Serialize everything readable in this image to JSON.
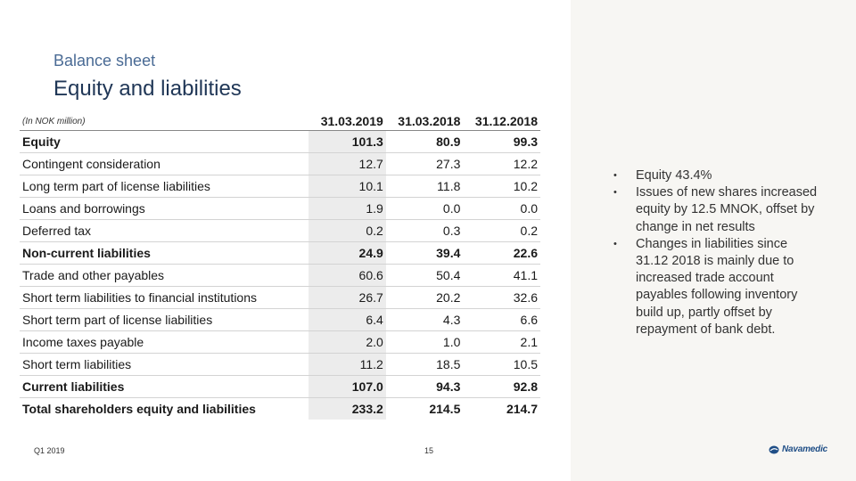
{
  "header": {
    "subtitle": "Balance sheet",
    "title": "Equity and liabilities"
  },
  "table": {
    "unit_label": "(In NOK million)",
    "columns": [
      "31.03.2019",
      "31.03.2018",
      "31.12.2018"
    ],
    "rows": [
      {
        "label": "Equity",
        "values": [
          "101.3",
          "80.9",
          "99.3"
        ]
      },
      {
        "label": "Contingent consideration",
        "values": [
          "12.7",
          "27.3",
          "12.2"
        ]
      },
      {
        "label": "Long term part of license liabilities",
        "values": [
          "10.1",
          "11.8",
          "10.2"
        ]
      },
      {
        "label": "Loans and borrowings",
        "values": [
          "1.9",
          "0.0",
          "0.0"
        ]
      },
      {
        "label": "Deferred tax",
        "values": [
          "0.2",
          "0.3",
          "0.2"
        ]
      },
      {
        "label": "Non-current liabilities",
        "values": [
          "24.9",
          "39.4",
          "22.6"
        ]
      },
      {
        "label": "Trade and other payables",
        "values": [
          "60.6",
          "50.4",
          "41.1"
        ]
      },
      {
        "label": "Short term liabilities to financial institutions",
        "values": [
          "26.7",
          "20.2",
          "32.6"
        ]
      },
      {
        "label": "Short term part of license liabilities",
        "values": [
          "6.4",
          "4.3",
          "6.6"
        ]
      },
      {
        "label": "Income taxes payable",
        "values": [
          "2.0",
          "1.0",
          "2.1"
        ]
      },
      {
        "label": "Short term liabilities",
        "values": [
          "11.2",
          "18.5",
          "10.5"
        ]
      },
      {
        "label": "Current liabilities",
        "values": [
          "107.0",
          "94.3",
          "92.8"
        ]
      },
      {
        "label": "Total shareholders equity and liabilities",
        "values": [
          "233.2",
          "214.5",
          "214.7"
        ]
      }
    ]
  },
  "bullets": [
    "Equity 43.4%",
    "Issues of new shares increased equity by 12.5 MNOK, offset by change in net results",
    "Changes in liabilities since 31.12 2018 is mainly due to increased trade account payables following inventory build up, partly offset by repayment of bank debt."
  ],
  "footer": {
    "period": "Q1 2019",
    "page": "15",
    "logo_text": "Navamedic"
  },
  "colors": {
    "accent": "#1f4e86",
    "panel": "#f7f6f3"
  }
}
